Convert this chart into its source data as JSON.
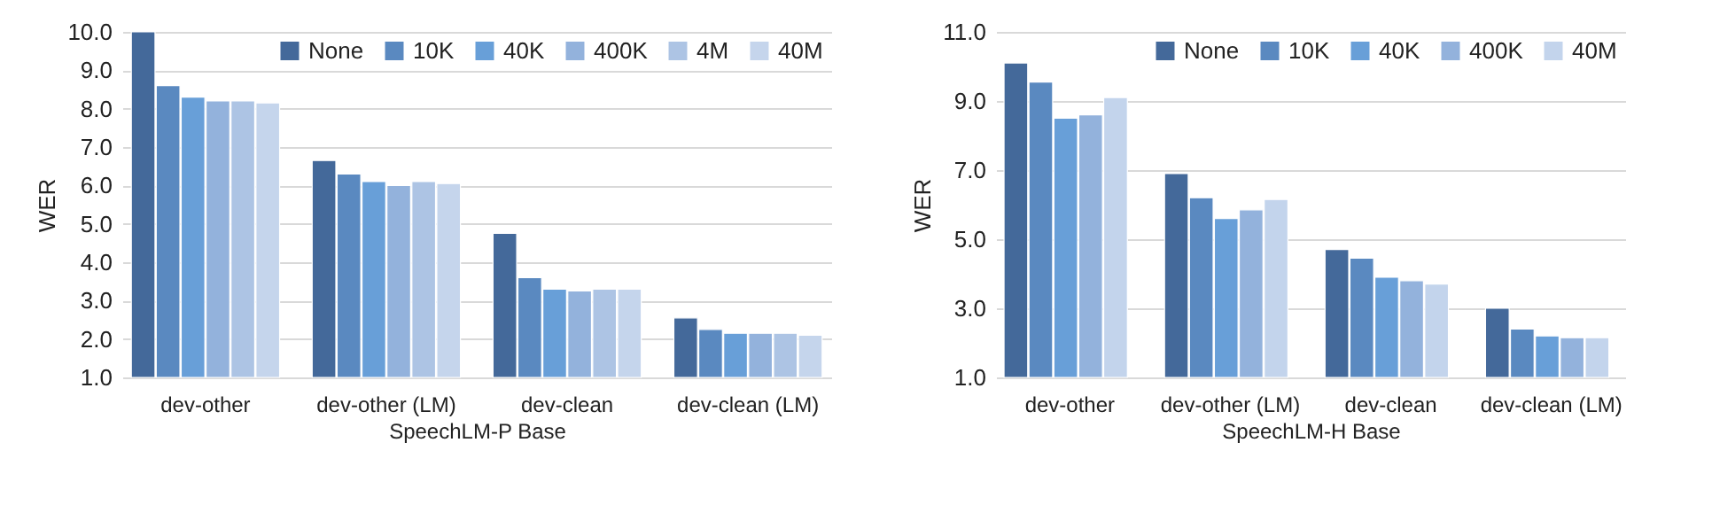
{
  "chart_data": [
    {
      "type": "bar",
      "xlabel": "SpeechLM-P Base",
      "ylabel": "WER",
      "categories": [
        "dev-other",
        "dev-other (LM)",
        "dev-clean",
        "dev-clean (LM)"
      ],
      "series": [
        {
          "name": "None",
          "color": "#44699a",
          "values": [
            10.0,
            6.65,
            4.75,
            2.55
          ]
        },
        {
          "name": "10K",
          "color": "#5a89c0",
          "values": [
            8.6,
            6.3,
            3.6,
            2.25
          ]
        },
        {
          "name": "40K",
          "color": "#689fd8",
          "values": [
            8.3,
            6.1,
            3.3,
            2.15
          ]
        },
        {
          "name": "400K",
          "color": "#93b2dc",
          "values": [
            8.2,
            6.0,
            3.25,
            2.15
          ]
        },
        {
          "name": "4M",
          "color": "#adc4e4",
          "values": [
            8.2,
            6.1,
            3.3,
            2.15
          ]
        },
        {
          "name": "40M",
          "color": "#c5d5ec",
          "values": [
            8.15,
            6.05,
            3.3,
            2.1
          ]
        }
      ],
      "ylim": [
        1,
        10
      ],
      "yticks": [
        {
          "value": 1,
          "label": "1.0"
        },
        {
          "value": 2,
          "label": "2.0"
        },
        {
          "value": 3,
          "label": "3.0"
        },
        {
          "value": 4,
          "label": "4.0"
        },
        {
          "value": 5,
          "label": "5.0"
        },
        {
          "value": 6,
          "label": "6.0"
        },
        {
          "value": 7,
          "label": "7.0"
        },
        {
          "value": 8,
          "label": "8.0"
        },
        {
          "value": 9,
          "label": "9.0"
        },
        {
          "value": 10,
          "label": "10.0"
        }
      ],
      "grid": "y",
      "legend": "top right"
    },
    {
      "type": "bar",
      "xlabel": "SpeechLM-H Base",
      "ylabel": "WER",
      "categories": [
        "dev-other",
        "dev-other (LM)",
        "dev-clean",
        "dev-clean (LM)"
      ],
      "series": [
        {
          "name": "None",
          "color": "#44699a",
          "values": [
            10.1,
            6.9,
            4.7,
            3.0
          ]
        },
        {
          "name": "10K",
          "color": "#5a89c0",
          "values": [
            9.55,
            6.2,
            4.45,
            2.4
          ]
        },
        {
          "name": "40K",
          "color": "#689fd8",
          "values": [
            8.5,
            5.6,
            3.9,
            2.2
          ]
        },
        {
          "name": "400K",
          "color": "#93b2dc",
          "values": [
            8.6,
            5.85,
            3.8,
            2.15
          ]
        },
        {
          "name": "40M",
          "color": "#c3d4ec",
          "values": [
            9.1,
            6.15,
            3.7,
            2.15
          ]
        }
      ],
      "ylim": [
        1,
        11
      ],
      "yticks": [
        {
          "value": 1,
          "label": "1.0"
        },
        {
          "value": 3,
          "label": "3.0"
        },
        {
          "value": 5,
          "label": "5.0"
        },
        {
          "value": 7,
          "label": "7.0"
        },
        {
          "value": 9,
          "label": "9.0"
        },
        {
          "value": 11,
          "label": "11.0"
        }
      ],
      "grid": "y",
      "legend": "top right"
    }
  ]
}
